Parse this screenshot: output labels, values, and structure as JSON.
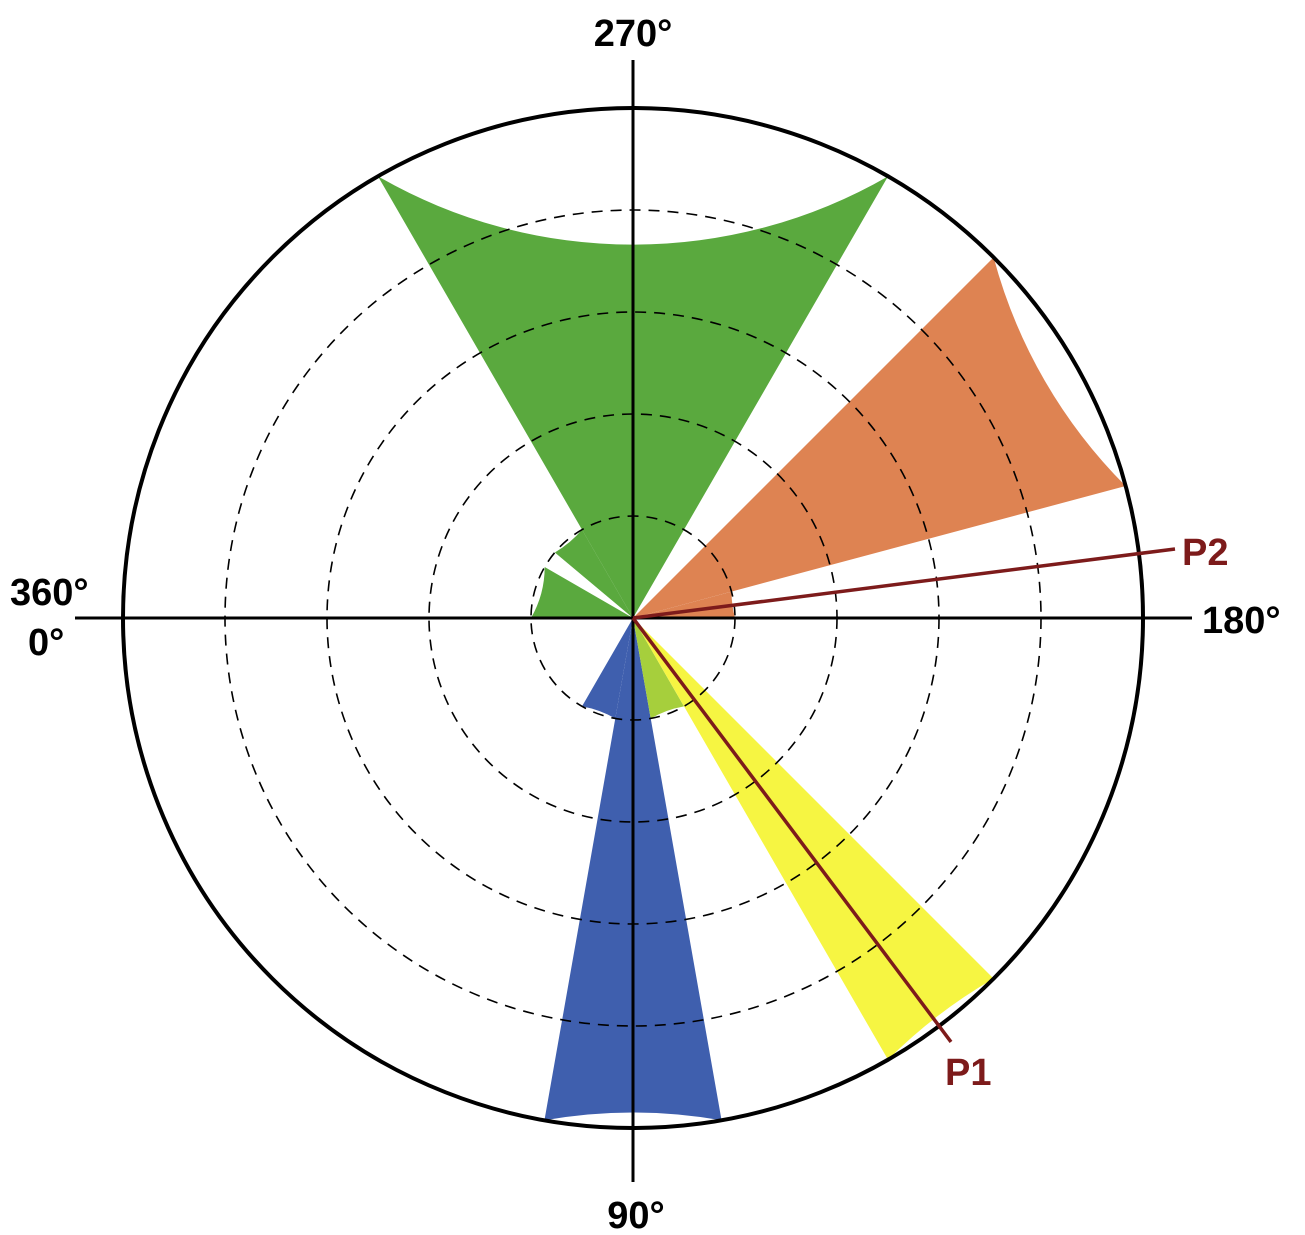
{
  "chart_data": {
    "type": "rose",
    "angular_axis": {
      "direction": "clockwise",
      "zero_at": "left",
      "labels": [
        {
          "angle": 0,
          "text": "0°"
        },
        {
          "angle": 360,
          "text": "360°"
        },
        {
          "angle": 90,
          "text": "90°"
        },
        {
          "angle": 180,
          "text": "180°"
        },
        {
          "angle": 270,
          "text": "270°"
        }
      ]
    },
    "radial_axis": {
      "max": 5,
      "grid_rings": [
        1,
        2,
        3,
        4
      ],
      "grid_style": "dashed"
    },
    "sectors": [
      {
        "start": 300,
        "end": 320,
        "r": 1,
        "color": "#5aa93e"
      },
      {
        "start": 240,
        "end": 300,
        "r": 5,
        "color": "#5aa93e"
      },
      {
        "start": 330,
        "end": 360,
        "r": 1,
        "color": "#5aa93e"
      },
      {
        "start": 180,
        "end": 195,
        "r": 1,
        "color": "#de8352"
      },
      {
        "start": 195,
        "end": 225,
        "r": 5,
        "color": "#de8352"
      },
      {
        "start": 60,
        "end": 80,
        "r": 1,
        "color": "#3f5fae"
      },
      {
        "start": 80,
        "end": 100,
        "r": 5,
        "color": "#3f5fae"
      },
      {
        "start": 100,
        "end": 120,
        "r": 1,
        "color": "#a6cf3c"
      },
      {
        "start": 120,
        "end": 135,
        "r": 5,
        "color": "#f6f542"
      }
    ],
    "lines": [
      {
        "name": "P1",
        "angle": 128,
        "color": "#7d1b1b"
      },
      {
        "name": "P2",
        "angle": 186,
        "color": "#7d1b1b"
      }
    ]
  }
}
